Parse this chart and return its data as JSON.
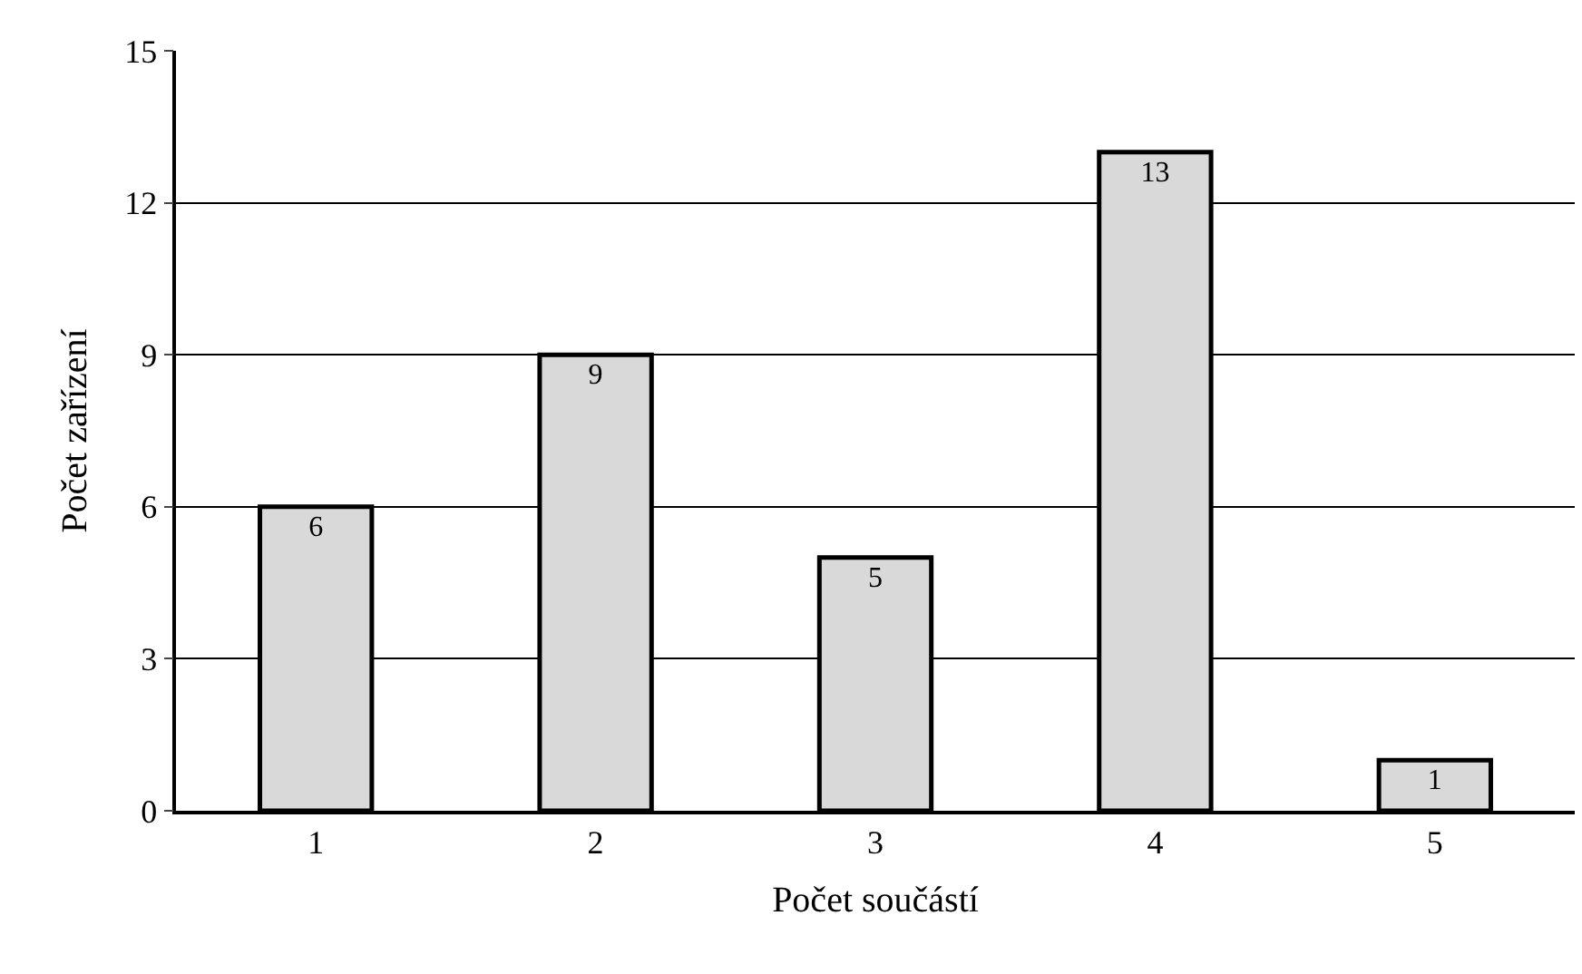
{
  "chart_data": {
    "type": "bar",
    "xlabel": "Počet součástí",
    "ylabel": "Počet zařízení",
    "categories": [
      "1",
      "2",
      "3",
      "4",
      "5"
    ],
    "values": [
      6,
      9,
      5,
      13,
      1
    ],
    "color": "#d9d9d9",
    "ylim": [
      0,
      15
    ],
    "yticks": [
      0,
      3,
      6,
      9,
      12,
      15
    ],
    "grid": "y",
    "data_labels": true
  }
}
